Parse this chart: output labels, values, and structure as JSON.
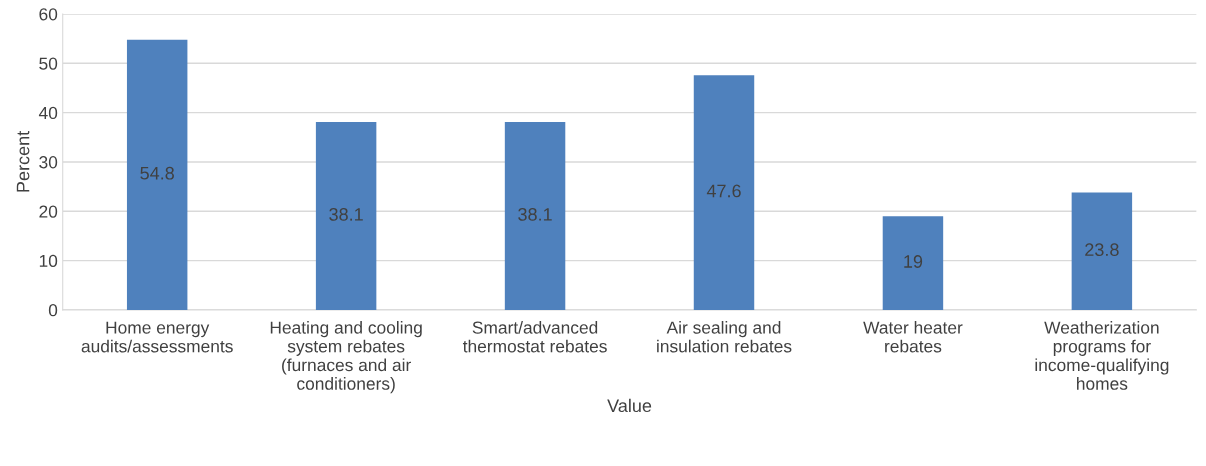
{
  "chart_data": {
    "type": "bar",
    "categories": [
      "Home energy\naudits/assessments",
      "Heating and cooling\nsystem rebates\n(furnaces and air\nconditioners)",
      "Smart/advanced\nthermostat rebates",
      "Air sealing and\ninsulation rebates",
      "Water heater\nrebates",
      "Weatherization\nprograms for\nincome-qualifying\nhomes"
    ],
    "values": [
      54.8,
      38.1,
      38.1,
      47.6,
      19,
      23.8
    ],
    "color": "#4f81bd",
    "xlabel": "Value",
    "ylabel": "Percent",
    "ylim": [
      0,
      60
    ],
    "yticks": [
      0,
      10,
      20,
      30,
      40,
      50,
      60
    ],
    "grid": "y",
    "data_labels": true,
    "legend": false
  }
}
